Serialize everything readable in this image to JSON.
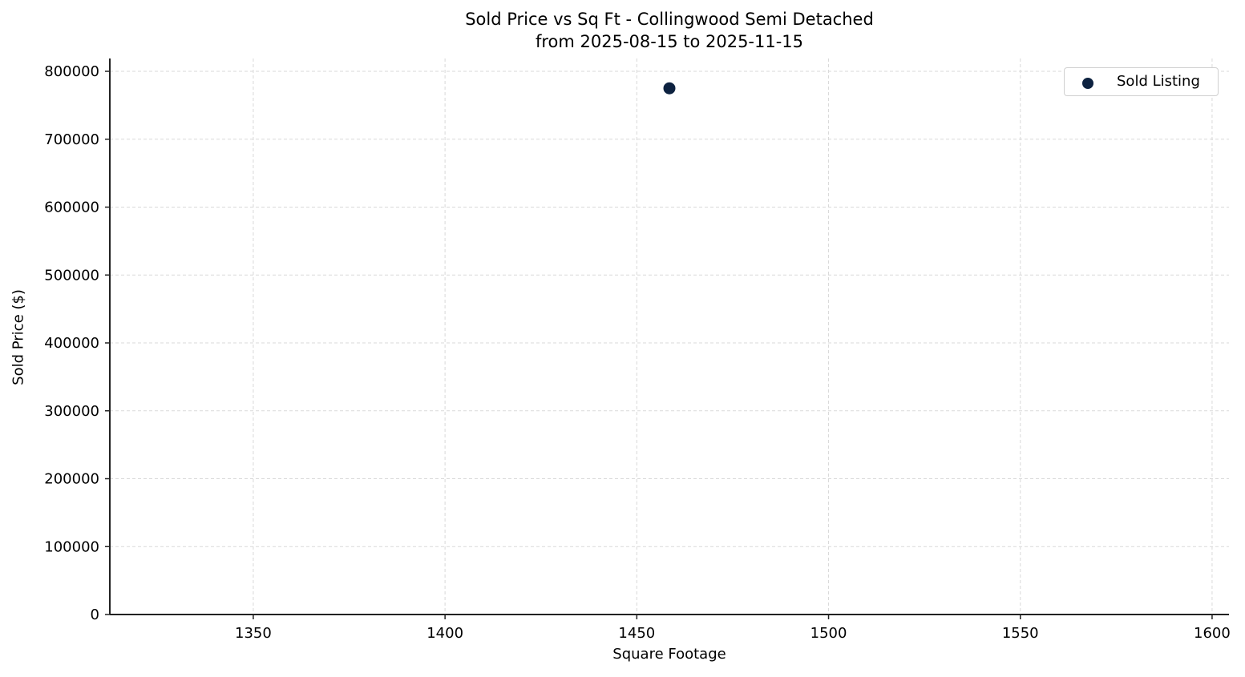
{
  "chart_data": {
    "type": "scatter",
    "title": "Sold Price vs Sq Ft - Collingwood Semi Detached",
    "subtitle": "from 2025-08-15 to 2025-11-15",
    "xlabel": "Square Footage",
    "ylabel": "Sold Price ($)",
    "xlim": [
      1312.6,
      1604.4
    ],
    "ylim": [
      0,
      818900
    ],
    "x_ticks": [
      1350,
      1400,
      1450,
      1500,
      1550,
      1600
    ],
    "y_ticks": [
      0,
      100000,
      200000,
      300000,
      400000,
      500000,
      600000,
      700000,
      800000
    ],
    "grid": true,
    "legend_position": "upper right",
    "series": [
      {
        "name": "Sold Listing",
        "color": "#0d2240",
        "points": [
          {
            "x": 1458.5,
            "y": 775000
          }
        ]
      }
    ]
  },
  "legend": {
    "label": "Sold Listing"
  }
}
